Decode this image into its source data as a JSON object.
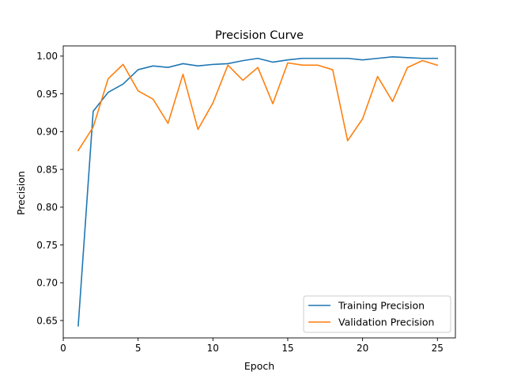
{
  "chart_data": {
    "type": "line",
    "title": "Precision Curve",
    "xlabel": "Epoch",
    "ylabel": "Precision",
    "xlim": [
      0,
      26.2
    ],
    "ylim": [
      0.627,
      1.0135
    ],
    "xticks": [
      0,
      5,
      10,
      15,
      20,
      25
    ],
    "yticks": [
      0.65,
      0.7,
      0.75,
      0.8,
      0.85,
      0.9,
      0.95,
      1.0
    ],
    "grid": false,
    "legend_position": "lower-right",
    "x": [
      1,
      2,
      3,
      4,
      5,
      6,
      7,
      8,
      9,
      10,
      11,
      12,
      13,
      14,
      15,
      16,
      17,
      18,
      19,
      20,
      21,
      22,
      23,
      24,
      25
    ],
    "series": [
      {
        "name": "Training Precision",
        "color": "#1f77b4",
        "values": [
          0.643,
          0.927,
          0.952,
          0.963,
          0.982,
          0.987,
          0.985,
          0.99,
          0.987,
          0.989,
          0.99,
          0.994,
          0.997,
          0.992,
          0.995,
          0.997,
          0.997,
          0.997,
          0.997,
          0.995,
          0.997,
          0.999,
          0.998,
          0.997,
          0.997
        ]
      },
      {
        "name": "Validation Precision",
        "color": "#ff7f0e",
        "values": [
          0.875,
          0.906,
          0.97,
          0.989,
          0.954,
          0.943,
          0.911,
          0.976,
          0.903,
          0.938,
          0.988,
          0.968,
          0.985,
          0.937,
          0.991,
          0.988,
          0.988,
          0.982,
          0.888,
          0.917,
          0.973,
          0.94,
          0.985,
          0.994,
          0.988
        ]
      }
    ]
  }
}
